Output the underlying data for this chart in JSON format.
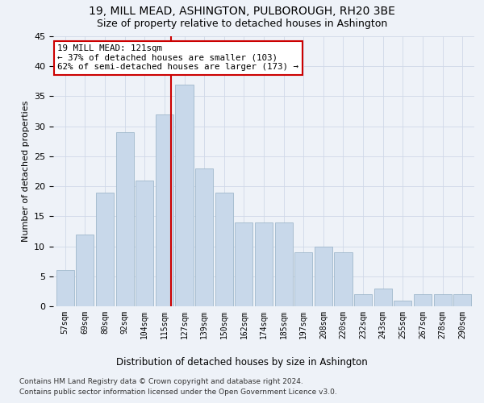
{
  "title1": "19, MILL MEAD, ASHINGTON, PULBOROUGH, RH20 3BE",
  "title2": "Size of property relative to detached houses in Ashington",
  "xlabel": "Distribution of detached houses by size in Ashington",
  "ylabel": "Number of detached properties",
  "categories": [
    "57sqm",
    "69sqm",
    "80sqm",
    "92sqm",
    "104sqm",
    "115sqm",
    "127sqm",
    "139sqm",
    "150sqm",
    "162sqm",
    "174sqm",
    "185sqm",
    "197sqm",
    "208sqm",
    "220sqm",
    "232sqm",
    "243sqm",
    "255sqm",
    "267sqm",
    "278sqm",
    "290sqm"
  ],
  "values": [
    6,
    12,
    19,
    29,
    21,
    32,
    37,
    23,
    19,
    14,
    14,
    14,
    9,
    10,
    9,
    2,
    3,
    1,
    2,
    2,
    2
  ],
  "bar_color": "#c8d8ea",
  "bar_edge_color": "#a0b8cc",
  "annotation_line1": "19 MILL MEAD: 121sqm",
  "annotation_line2": "← 37% of detached houses are smaller (103)",
  "annotation_line3": "62% of semi-detached houses are larger (173) →",
  "annotation_box_color": "#ffffff",
  "annotation_box_edge": "#cc0000",
  "vline_color": "#cc0000",
  "grid_color": "#d0d8e8",
  "background_color": "#eef2f8",
  "footer1": "Contains HM Land Registry data © Crown copyright and database right 2024.",
  "footer2": "Contains public sector information licensed under the Open Government Licence v3.0.",
  "ylim": [
    0,
    45
  ],
  "vline_index": 5.33
}
